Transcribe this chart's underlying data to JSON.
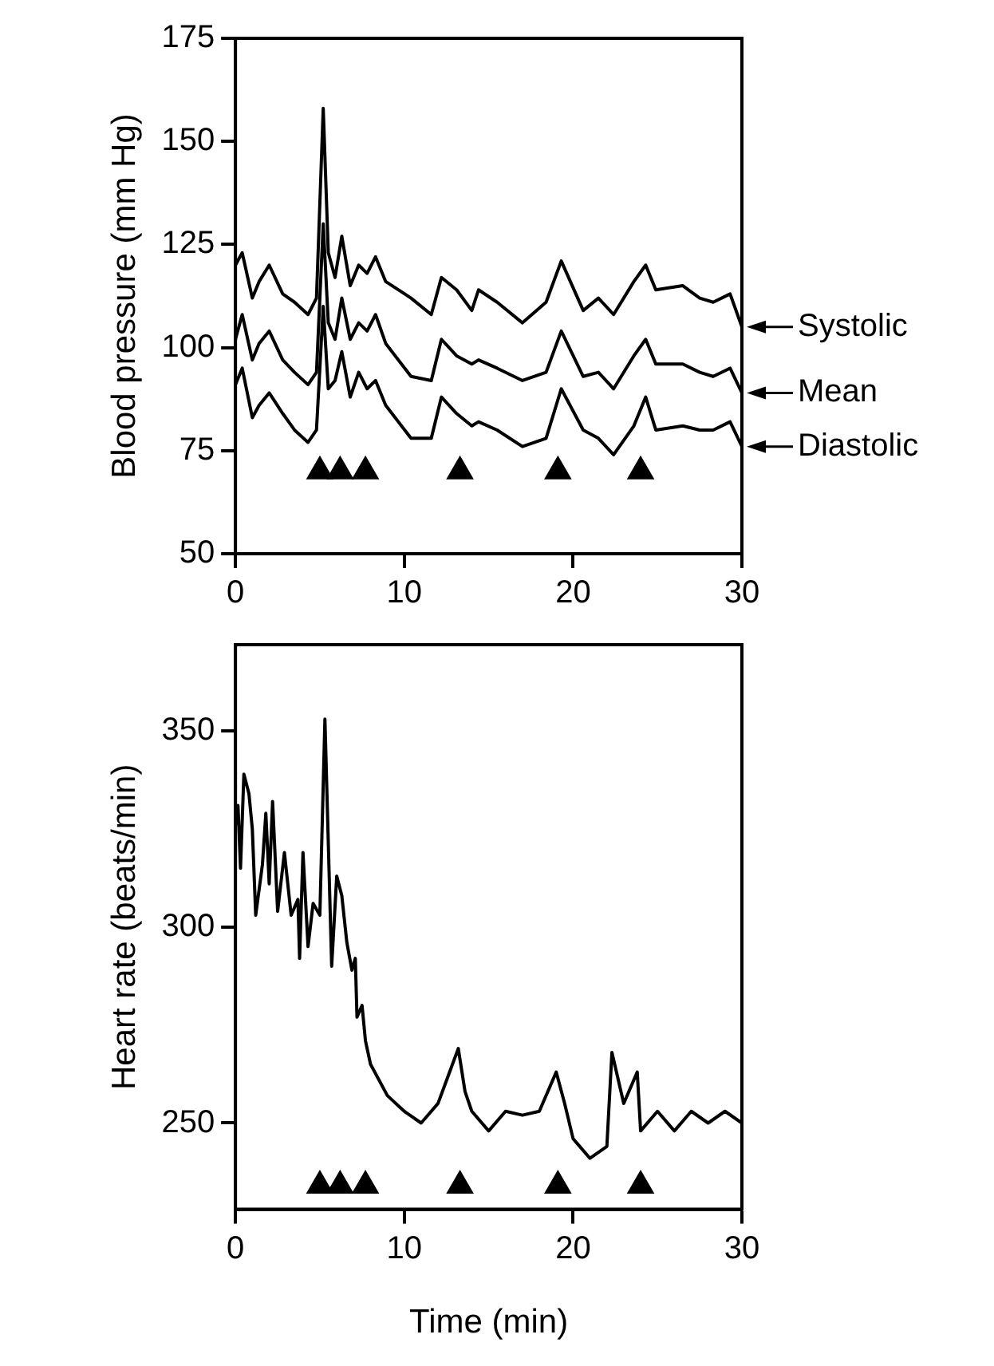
{
  "chart_data": [
    {
      "type": "line",
      "ylabel": "Blood pressure (mm Hg)",
      "xlim": [
        0,
        30
      ],
      "xticks": [
        0,
        10,
        20,
        30
      ],
      "ylim": [
        50,
        175
      ],
      "yticks": [
        50,
        75,
        100,
        125,
        150,
        175
      ],
      "legend": "right",
      "marker": "none",
      "series": [
        {
          "name": "Systolic",
          "color": "#000000",
          "x": [
            0,
            0.4,
            1.0,
            1.4,
            2.0,
            2.8,
            3.5,
            4.3,
            4.8,
            5.2,
            5.5,
            5.9,
            6.3,
            6.8,
            7.3,
            7.8,
            8.3,
            8.9,
            10.4,
            11.6,
            12.2,
            13.1,
            14.0,
            14.4,
            15.5,
            17.0,
            18.4,
            19.3,
            20.6,
            21.5,
            22.4,
            23.6,
            24.3,
            24.9,
            26.5,
            27.5,
            28.3,
            29.3,
            30.0
          ],
          "values": [
            120,
            123,
            112,
            116,
            120,
            113,
            111,
            108,
            112,
            158,
            123,
            117,
            127,
            115,
            120,
            118,
            122,
            116,
            112,
            108,
            117,
            114,
            109,
            114,
            111,
            106,
            111,
            121,
            109,
            112,
            108,
            116,
            120,
            114,
            115,
            112,
            111,
            113,
            105
          ]
        },
        {
          "name": "Mean",
          "color": "#000000",
          "x": [
            0,
            0.4,
            1.0,
            1.4,
            2.0,
            2.8,
            3.5,
            4.3,
            4.8,
            5.2,
            5.5,
            5.9,
            6.3,
            6.8,
            7.3,
            7.8,
            8.3,
            8.9,
            10.4,
            11.6,
            12.2,
            13.1,
            14.0,
            14.4,
            15.5,
            17.0,
            18.4,
            19.3,
            20.6,
            21.5,
            22.4,
            23.6,
            24.3,
            24.9,
            26.5,
            27.5,
            28.3,
            29.3,
            30.0
          ],
          "values": [
            102,
            108,
            97,
            101,
            104,
            97,
            94,
            91,
            94,
            130,
            106,
            102,
            112,
            102,
            106,
            104,
            108,
            101,
            93,
            92,
            102,
            98,
            96,
            97,
            95,
            92,
            94,
            104,
            93,
            94,
            90,
            98,
            102,
            96,
            96,
            94,
            93,
            95,
            89
          ]
        },
        {
          "name": "Diastolic",
          "color": "#000000",
          "x": [
            0,
            0.4,
            1.0,
            1.4,
            2.0,
            2.8,
            3.5,
            4.3,
            4.8,
            5.2,
            5.5,
            5.9,
            6.3,
            6.8,
            7.3,
            7.8,
            8.3,
            8.9,
            10.4,
            11.6,
            12.2,
            13.1,
            14.0,
            14.4,
            15.5,
            17.0,
            18.4,
            19.3,
            20.6,
            21.5,
            22.4,
            23.6,
            24.3,
            24.9,
            26.5,
            27.5,
            28.3,
            29.3,
            30.0
          ],
          "values": [
            91,
            95,
            83,
            86,
            89,
            84,
            80,
            77,
            80,
            110,
            90,
            92,
            99,
            88,
            94,
            90,
            92,
            86,
            78,
            78,
            88,
            84,
            81,
            82,
            80,
            76,
            78,
            90,
            80,
            78,
            74,
            81,
            88,
            80,
            81,
            80,
            80,
            82,
            76
          ]
        },
        {
          "type": "scatter",
          "marker": "triangle",
          "color": "#000000",
          "x": [
            5.0,
            6.2,
            7.7,
            13.3,
            19.1,
            24.0
          ],
          "values": [
            70,
            70,
            70,
            70,
            70,
            70
          ]
        }
      ]
    },
    {
      "type": "line",
      "ylabel": "Heart rate (beats/min)",
      "xlabel": "Time (min)",
      "xlim": [
        0,
        30
      ],
      "xticks": [
        0,
        10,
        20,
        30
      ],
      "ylim": [
        228,
        372
      ],
      "yticks": [
        250,
        300,
        350
      ],
      "legend": false,
      "marker": "none",
      "series": [
        {
          "color": "#000000",
          "x": [
            0,
            0.15,
            0.3,
            0.5,
            0.8,
            1.0,
            1.2,
            1.6,
            1.8,
            2.0,
            2.2,
            2.5,
            2.9,
            3.3,
            3.7,
            3.8,
            4.0,
            4.3,
            4.6,
            5.0,
            5.3,
            5.7,
            6.0,
            6.3,
            6.6,
            6.9,
            7.1,
            7.2,
            7.5,
            7.7,
            8.0,
            9.0,
            10.0,
            11.0,
            12.0,
            12.6,
            13.2,
            13.6,
            14.0,
            15.0,
            16.0,
            17.0,
            18.0,
            19.0,
            19.5,
            20.0,
            21.0,
            22.0,
            22.3,
            23.0,
            23.8,
            24.0,
            25.0,
            26.0,
            27.0,
            28.0,
            29.0,
            30.0
          ],
          "values": [
            326,
            331,
            315,
            339,
            334,
            325,
            303,
            316,
            329,
            311,
            332,
            304,
            319,
            303,
            307,
            292,
            319,
            295,
            306,
            303,
            353,
            290,
            313,
            308,
            296,
            289,
            292,
            277,
            280,
            271,
            265,
            257,
            253,
            250,
            255,
            262,
            269,
            258,
            253,
            248,
            253,
            252,
            253,
            263,
            255,
            246,
            241,
            244,
            268,
            255,
            263,
            248,
            253,
            248,
            253,
            250,
            253,
            250
          ]
        },
        {
          "type": "scatter",
          "marker": "triangle",
          "color": "#000000",
          "x": [
            5.0,
            6.2,
            7.7,
            13.3,
            19.1,
            24.0
          ],
          "values": [
            234,
            234,
            234,
            234,
            234,
            234
          ]
        }
      ]
    }
  ]
}
